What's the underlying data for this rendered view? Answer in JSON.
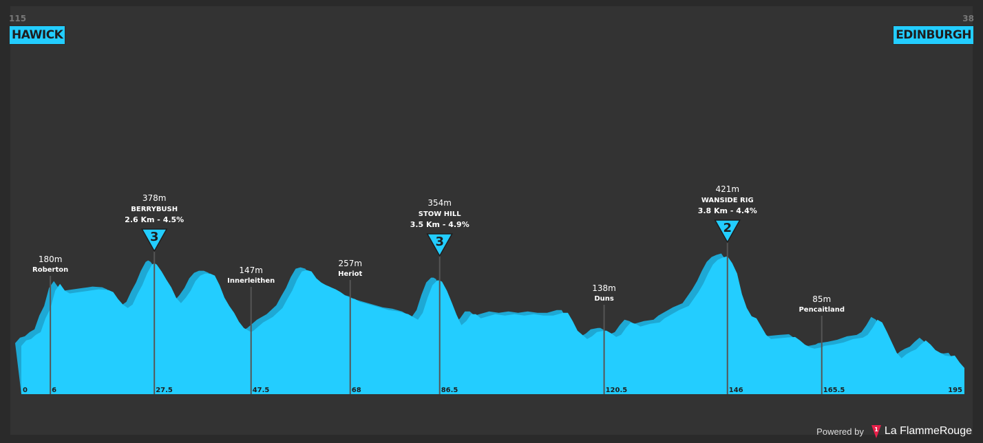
{
  "start": {
    "name": "HAWICK",
    "elevation": "115"
  },
  "finish": {
    "name": "EDINBURGH",
    "elevation": "38"
  },
  "branding": {
    "powered": "Powered by",
    "brand": "La FlammeRouge",
    "logo_number": "1"
  },
  "colors": {
    "profile": "#23cdff",
    "profile_shadow": "#1ea8d4",
    "background": "#333333",
    "badge": "#23cdff"
  },
  "chart_data": {
    "type": "area",
    "xlim": [
      0,
      195
    ],
    "ylim": [
      0,
      450
    ],
    "profile": [
      [
        0,
        70
      ],
      [
        1,
        78
      ],
      [
        2,
        80
      ],
      [
        3,
        86
      ],
      [
        4,
        90
      ],
      [
        5,
        110
      ],
      [
        6,
        124
      ],
      [
        7,
        150
      ],
      [
        8,
        160
      ],
      [
        9,
        150
      ],
      [
        10,
        146
      ],
      [
        12,
        148
      ],
      [
        14,
        150
      ],
      [
        16,
        152
      ],
      [
        18,
        151
      ],
      [
        19,
        148
      ],
      [
        20,
        138
      ],
      [
        21,
        130
      ],
      [
        22,
        125
      ],
      [
        23,
        130
      ],
      [
        24,
        145
      ],
      [
        25,
        158
      ],
      [
        26,
        175
      ],
      [
        27,
        188
      ],
      [
        27.5,
        190
      ],
      [
        28,
        188
      ],
      [
        29,
        178
      ],
      [
        30,
        166
      ],
      [
        31,
        155
      ],
      [
        32,
        140
      ],
      [
        33,
        132
      ],
      [
        34,
        140
      ],
      [
        35,
        150
      ],
      [
        36,
        164
      ],
      [
        37,
        172
      ],
      [
        38,
        175
      ],
      [
        39,
        175
      ],
      [
        40,
        172
      ],
      [
        41,
        158
      ],
      [
        42,
        140
      ],
      [
        43,
        128
      ],
      [
        44,
        118
      ],
      [
        45,
        105
      ],
      [
        46,
        96
      ],
      [
        47,
        92
      ],
      [
        47.5,
        90
      ],
      [
        48,
        92
      ],
      [
        49,
        98
      ],
      [
        50,
        104
      ],
      [
        52,
        112
      ],
      [
        54,
        125
      ],
      [
        55,
        138
      ],
      [
        56,
        150
      ],
      [
        57,
        166
      ],
      [
        58,
        178
      ],
      [
        59,
        180
      ],
      [
        60,
        178
      ],
      [
        61,
        168
      ],
      [
        62,
        162
      ],
      [
        63,
        158
      ],
      [
        64,
        155
      ],
      [
        65,
        152
      ],
      [
        66,
        148
      ],
      [
        67,
        143
      ],
      [
        68,
        140
      ],
      [
        69,
        138
      ],
      [
        70,
        134
      ],
      [
        72,
        130
      ],
      [
        74,
        126
      ],
      [
        76,
        122
      ],
      [
        78,
        120
      ],
      [
        80,
        116
      ],
      [
        82,
        108
      ],
      [
        83,
        118
      ],
      [
        84,
        140
      ],
      [
        85,
        158
      ],
      [
        86,
        165
      ],
      [
        86.5,
        165
      ],
      [
        87,
        163
      ],
      [
        88,
        150
      ],
      [
        89,
        133
      ],
      [
        90,
        115
      ],
      [
        91,
        100
      ],
      [
        92,
        106
      ],
      [
        93,
        116
      ],
      [
        94,
        116
      ],
      [
        95,
        110
      ],
      [
        96,
        112
      ],
      [
        98,
        116
      ],
      [
        100,
        114
      ],
      [
        102,
        116
      ],
      [
        104,
        114
      ],
      [
        106,
        116
      ],
      [
        108,
        114
      ],
      [
        110,
        114
      ],
      [
        112,
        118
      ],
      [
        113,
        118
      ],
      [
        114,
        106
      ],
      [
        115,
        92
      ],
      [
        116,
        86
      ],
      [
        117,
        80
      ],
      [
        118,
        84
      ],
      [
        119,
        90
      ],
      [
        120.5,
        92
      ],
      [
        121,
        92
      ],
      [
        122,
        88
      ],
      [
        123,
        83
      ],
      [
        124,
        86
      ],
      [
        125,
        96
      ],
      [
        126,
        104
      ],
      [
        127,
        102
      ],
      [
        128,
        98
      ],
      [
        130,
        102
      ],
      [
        132,
        104
      ],
      [
        133,
        110
      ],
      [
        134,
        114
      ],
      [
        135,
        118
      ],
      [
        136,
        122
      ],
      [
        138,
        128
      ],
      [
        139,
        138
      ],
      [
        140,
        148
      ],
      [
        141,
        160
      ],
      [
        142,
        175
      ],
      [
        143,
        188
      ],
      [
        144,
        195
      ],
      [
        145,
        198
      ],
      [
        146,
        200
      ],
      [
        147,
        190
      ],
      [
        148,
        175
      ],
      [
        149,
        145
      ],
      [
        150,
        125
      ],
      [
        151,
        113
      ],
      [
        152,
        110
      ],
      [
        153,
        98
      ],
      [
        154,
        86
      ],
      [
        155,
        80
      ],
      [
        158,
        82
      ],
      [
        160,
        83
      ],
      [
        161,
        78
      ],
      [
        162,
        72
      ],
      [
        163,
        68
      ],
      [
        164,
        66
      ],
      [
        165.5,
        68
      ],
      [
        166,
        70
      ],
      [
        168,
        72
      ],
      [
        170,
        75
      ],
      [
        172,
        80
      ],
      [
        174,
        82
      ],
      [
        175,
        86
      ],
      [
        176,
        96
      ],
      [
        177,
        108
      ],
      [
        178,
        104
      ],
      [
        179,
        90
      ],
      [
        180,
        75
      ],
      [
        181,
        60
      ],
      [
        182,
        52
      ],
      [
        183,
        58
      ],
      [
        184,
        62
      ],
      [
        185,
        65
      ],
      [
        186,
        72
      ],
      [
        187,
        78
      ],
      [
        188,
        72
      ],
      [
        189,
        64
      ],
      [
        190,
        60
      ],
      [
        191,
        56
      ],
      [
        192,
        55
      ],
      [
        193,
        56
      ],
      [
        194,
        46
      ],
      [
        195,
        38
      ]
    ],
    "km_ticks": [
      {
        "x": 0,
        "label": "0"
      },
      {
        "x": 6,
        "label": "6"
      },
      {
        "x": 27.5,
        "label": "27.5"
      },
      {
        "x": 47.5,
        "label": "47.5"
      },
      {
        "x": 68,
        "label": "68"
      },
      {
        "x": 86.5,
        "label": "86.5"
      },
      {
        "x": 120.5,
        "label": "120.5"
      },
      {
        "x": 146,
        "label": "146"
      },
      {
        "x": 165.5,
        "label": "165.5"
      },
      {
        "x": 195,
        "label": "195"
      }
    ],
    "waypoints": [
      {
        "x": 6,
        "elevation": "180m",
        "name": "Roberton",
        "elev_value": 180
      },
      {
        "x": 47.5,
        "elevation": "147m",
        "name": "Innerleithen",
        "elev_value": 147
      },
      {
        "x": 68,
        "elevation": "257m",
        "name": "Heriot",
        "elev_value": 257
      },
      {
        "x": 120.5,
        "elevation": "138m",
        "name": "Duns",
        "elev_value": 138
      },
      {
        "x": 165.5,
        "elevation": "85m",
        "name": "Pencaitland",
        "elev_value": 85
      }
    ],
    "climbs": [
      {
        "x": 27.5,
        "elevation": "378m",
        "name": "BERRYBUSH",
        "stats": "2.6 Km - 4.5%",
        "category": "3",
        "elev_value": 378
      },
      {
        "x": 86.5,
        "elevation": "354m",
        "name": "STOW HILL",
        "stats": "3.5 Km - 4.9%",
        "category": "3",
        "elev_value": 354
      },
      {
        "x": 146,
        "elevation": "421m",
        "name": "WANSIDE RIG",
        "stats": "3.8 Km - 4.4%",
        "category": "2",
        "elev_value": 421
      }
    ]
  }
}
